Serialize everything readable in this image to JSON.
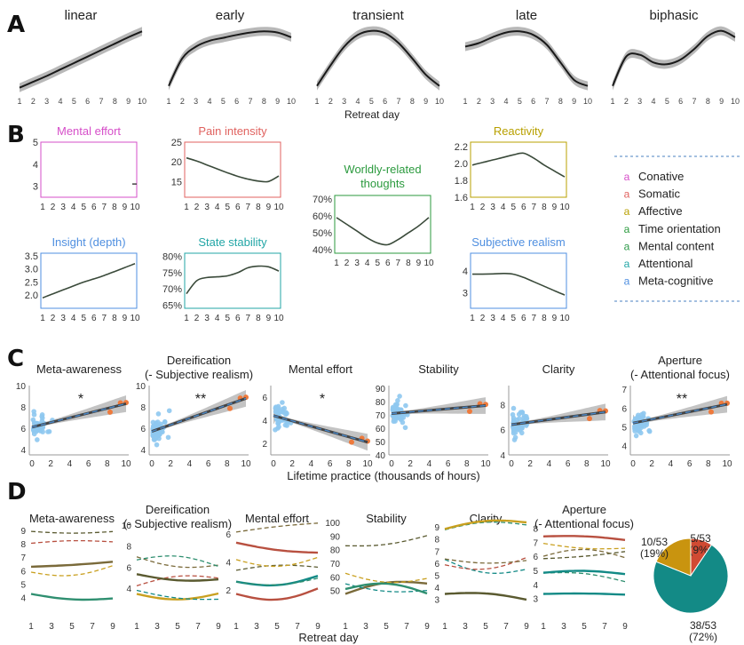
{
  "panel_labels": [
    "A",
    "B",
    "C",
    "D"
  ],
  "colors": {
    "conative": "#d64fc9",
    "somatic": "#e0625f",
    "affective": "#b8a000",
    "time_orientation": "#2b9a3e",
    "mental_content": "#2e9a4a",
    "attentional": "#22a6a6",
    "metacognitive": "#4f8fe0",
    "scatter_blue": "#8ec8f0",
    "scatter_orange": "#ee7a3c",
    "trend": "#444444",
    "dashed": "#4a88c8",
    "band": "#b8b8b8"
  },
  "legend_B": {
    "items": [
      "Conative",
      "Somatic",
      "Affective",
      "Time orientation",
      "Mental content",
      "Attentional",
      "Meta-cognitive"
    ],
    "marker": "a"
  },
  "chart_data": [
    {
      "panel": "A",
      "type": "line",
      "xlabel": "Retreat day",
      "x": [
        1,
        2,
        3,
        4,
        5,
        6,
        7,
        8,
        9,
        10
      ],
      "series": [
        {
          "name": "linear",
          "values": [
            0.02,
            0.12,
            0.22,
            0.33,
            0.44,
            0.55,
            0.66,
            0.77,
            0.88,
            0.98
          ]
        },
        {
          "name": "early",
          "values": [
            0.05,
            0.52,
            0.72,
            0.82,
            0.87,
            0.92,
            0.96,
            0.98,
            0.96,
            0.88
          ]
        },
        {
          "name": "transient",
          "values": [
            0.05,
            0.4,
            0.72,
            0.92,
            0.99,
            0.95,
            0.78,
            0.52,
            0.24,
            0.05
          ]
        },
        {
          "name": "late",
          "values": [
            0.72,
            0.78,
            0.88,
            0.96,
            0.98,
            0.92,
            0.75,
            0.45,
            0.15,
            0.05
          ]
        },
        {
          "name": "biphasic",
          "values": [
            0.05,
            0.55,
            0.58,
            0.45,
            0.42,
            0.5,
            0.68,
            0.9,
            0.99,
            0.88
          ]
        }
      ]
    },
    {
      "panel": "B",
      "type": "line",
      "x": [
        1,
        2,
        3,
        4,
        5,
        6,
        7,
        8,
        9,
        10
      ],
      "subplots": [
        {
          "title": "Mental effort",
          "category": "conative",
          "ylim": [
            2.5,
            5
          ],
          "yticks": [
            "3",
            "4",
            "5"
          ],
          "values": [
            3.1,
            3.1,
            3.1,
            3.1,
            3.1,
            3.1,
            3.1,
            3.1,
            3.1,
            3.1
          ]
        },
        {
          "title": "Pain intensity",
          "category": "somatic",
          "ylim": [
            11,
            25
          ],
          "yticks": [
            "15",
            "20",
            "25"
          ],
          "values": [
            21,
            20.2,
            19.2,
            18.2,
            17.2,
            16.3,
            15.6,
            15.1,
            15.0,
            16.4
          ]
        },
        {
          "title": "Reactivity",
          "category": "affective",
          "ylim": [
            1.6,
            2.25
          ],
          "yticks": [
            "1.6",
            "1.8",
            "2.0",
            "2.2"
          ],
          "values": [
            1.98,
            2.01,
            2.04,
            2.07,
            2.1,
            2.12,
            2.06,
            1.98,
            1.91,
            1.84
          ]
        },
        {
          "title": "Worldly-related\nthoughts",
          "category": "time_orientation",
          "ylim": [
            38,
            72
          ],
          "yticks": [
            "40%",
            "50%",
            "60%",
            "70%"
          ],
          "values": [
            59,
            55,
            51,
            47,
            44,
            43,
            46,
            50,
            54,
            59
          ]
        },
        {
          "title": "Insight (depth)",
          "category": "metacognitive",
          "ylim": [
            1.5,
            3.6
          ],
          "yticks": [
            "2.0",
            "2.5",
            "3.0",
            "3.5"
          ],
          "values": [
            1.9,
            2.05,
            2.2,
            2.35,
            2.5,
            2.62,
            2.75,
            2.9,
            3.05,
            3.2
          ]
        },
        {
          "title": "State stability",
          "category": "attentional",
          "ylim": [
            64,
            81
          ],
          "yticks": [
            "65%",
            "70%",
            "75%",
            "80%"
          ],
          "values": [
            68.5,
            72.5,
            73.5,
            73.7,
            74.0,
            75.0,
            76.5,
            77.0,
            76.8,
            75.5
          ]
        },
        {
          "title": "Subjective realism",
          "category": "metacognitive",
          "ylim": [
            2.3,
            4.8
          ],
          "yticks": [
            "3",
            "4"
          ],
          "values": [
            3.85,
            3.85,
            3.86,
            3.88,
            3.85,
            3.7,
            3.5,
            3.3,
            3.1,
            2.9
          ]
        }
      ]
    },
    {
      "panel": "C",
      "type": "scatter",
      "xlabel": "Lifetime practice (thousands of hours)",
      "xticks": [
        0,
        2,
        4,
        6,
        8,
        10
      ],
      "subplots": [
        {
          "title": "Meta-awareness",
          "sig": "*",
          "ylim": [
            3.5,
            10
          ],
          "yticks": [
            4,
            6,
            8,
            10
          ],
          "line": [
            6.1,
            8.3
          ]
        },
        {
          "title": "Dereification\n(- Subjective realism)",
          "sig": "**",
          "ylim": [
            3.5,
            10
          ],
          "yticks": [
            4,
            6,
            8,
            10
          ],
          "line": [
            5.7,
            8.8
          ]
        },
        {
          "title": "Mental effort",
          "sig": "*",
          "ylim": [
            1,
            7
          ],
          "yticks": [
            2,
            4,
            6
          ],
          "line": [
            4.4,
            2.1
          ]
        },
        {
          "title": "Stability",
          "sig": "",
          "ylim": [
            40,
            92
          ],
          "yticks": [
            40,
            50,
            60,
            70,
            80,
            90
          ],
          "line": [
            71,
            77
          ]
        },
        {
          "title": "Clarity",
          "sig": "",
          "ylim": [
            4,
            9.5
          ],
          "yticks": [
            4,
            6,
            8
          ],
          "line": [
            6.4,
            7.4
          ]
        },
        {
          "title": "Aperture\n(- Attentional focus)",
          "sig": "**",
          "ylim": [
            3.5,
            7.2
          ],
          "yticks": [
            4,
            5,
            6,
            7
          ],
          "line": [
            5.2,
            6.2
          ]
        }
      ]
    },
    {
      "panel": "D",
      "type": "line",
      "xlabel": "Retreat day",
      "xticks": [
        1,
        3,
        5,
        7,
        9
      ],
      "subplots": [
        {
          "title": "Meta-awareness",
          "yticks": [
            4,
            5,
            6,
            7,
            8,
            9
          ],
          "ylim": [
            3.5,
            9.8
          ]
        },
        {
          "title": "Dereification\n(- Subjective realism)",
          "yticks": [
            4,
            6,
            8,
            10
          ],
          "ylim": [
            2.5,
            10.5
          ]
        },
        {
          "title": "Mental effort",
          "yticks": [
            2,
            4,
            6
          ],
          "ylim": [
            1,
            7
          ]
        },
        {
          "title": "Stability",
          "yticks": [
            50,
            60,
            70,
            80,
            90,
            100
          ],
          "ylim": [
            40,
            102
          ]
        },
        {
          "title": "Clarity",
          "yticks": [
            3,
            4,
            5,
            6,
            7,
            8,
            9
          ],
          "ylim": [
            2.6,
            9.6
          ]
        },
        {
          "title": "Aperture\n(- Attentional focus)",
          "yticks": [
            3,
            4,
            5,
            6,
            7,
            8
          ],
          "ylim": [
            2.6,
            8.6
          ]
        }
      ]
    },
    {
      "panel": "D-pie",
      "type": "pie",
      "slices": [
        {
          "label": "5/53\n(9%)",
          "value": 5,
          "color": "#d04a33"
        },
        {
          "label": "38/53\n(72%)",
          "value": 38,
          "color": "#138a86"
        },
        {
          "label": "10/53\n(19%)",
          "value": 10,
          "color": "#c9940f"
        }
      ]
    }
  ]
}
